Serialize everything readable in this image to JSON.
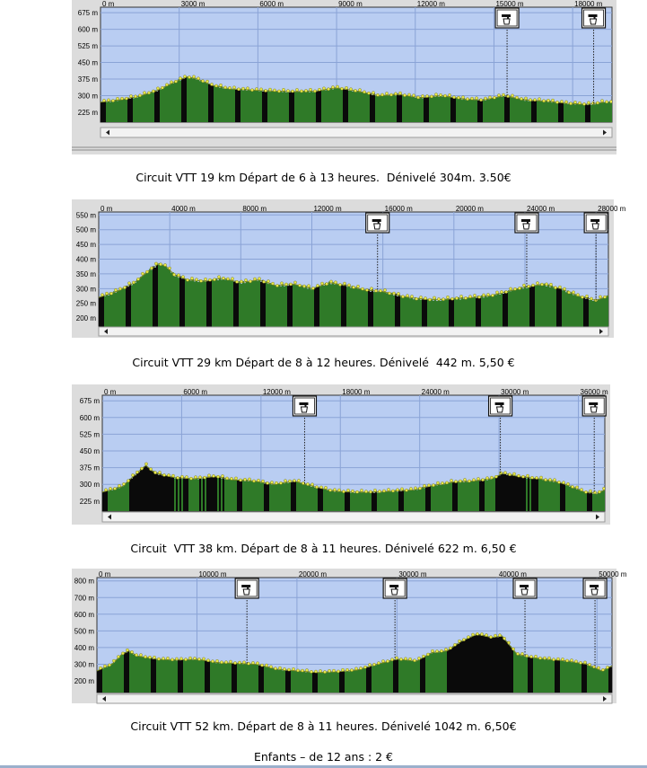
{
  "colors": {
    "plot_bg": "#b9cdf2",
    "panel_bg": "#dcdcdc",
    "grid": "#8aa3d6",
    "fill_green": "#2f7a28",
    "fill_dark": "#0a0a0a",
    "marker_yellow": "#e8e84a"
  },
  "icon": "water-tap-icon",
  "profiles": [
    {
      "id": "vtt-19",
      "caption": "Circuit VTT 19 km Départ de 6 à 13 heures.  Dénivelé 304m. 3.50€",
      "x_ticks": [
        "0 m",
        "3000 m",
        "6000 m",
        "9000 m",
        "12000 m",
        "15000 m",
        "18000 m"
      ],
      "y_ticks": [
        "675 m",
        "600 m",
        "525 m",
        "450 m",
        "375 m",
        "300 m",
        "225 m"
      ],
      "chart_data": {
        "type": "area",
        "xlabel": "",
        "ylabel": "",
        "x_unit": "m",
        "ylim": [
          180,
          700
        ],
        "xlim": [
          0,
          19500
        ],
        "x": [
          0,
          700,
          1400,
          2100,
          2800,
          3300,
          3700,
          4300,
          5000,
          5800,
          6600,
          7400,
          8200,
          9000,
          9800,
          10600,
          11400,
          12200,
          13000,
          13800,
          14600,
          15400,
          16200,
          17000,
          17800,
          18600,
          19200
        ],
        "y": [
          270,
          280,
          295,
          320,
          360,
          385,
          375,
          345,
          330,
          325,
          320,
          318,
          320,
          335,
          320,
          300,
          305,
          290,
          300,
          285,
          280,
          300,
          280,
          275,
          265,
          260,
          270
        ],
        "water_points_x": [
          15500,
          18800
        ]
      }
    },
    {
      "id": "vtt-29",
      "caption": "Circuit VTT 29 km Départ de 8 à 12 heures. Dénivelé  442 m. 5,50 €",
      "x_ticks": [
        "0 m",
        "4000 m",
        "8000 m",
        "12000 m",
        "16000 m",
        "20000 m",
        "24000 m",
        "28000 m"
      ],
      "y_ticks": [
        "550 m",
        "500 m",
        "450 m",
        "400 m",
        "350 m",
        "300 m",
        "250 m",
        "200 m"
      ],
      "chart_data": {
        "type": "area",
        "xlabel": "",
        "ylabel": "",
        "x_unit": "m",
        "ylim": [
          170,
          560
        ],
        "xlim": [
          0,
          28700
        ],
        "x": [
          0,
          1000,
          2000,
          2800,
          3400,
          3800,
          4300,
          5000,
          6000,
          7000,
          8000,
          9000,
          10000,
          11000,
          12000,
          13000,
          14000,
          15000,
          16000,
          17000,
          18000,
          19000,
          20000,
          21000,
          22000,
          23000,
          24000,
          25000,
          26000,
          27000,
          28000,
          28700
        ],
        "y": [
          270,
          290,
          320,
          360,
          385,
          375,
          345,
          330,
          325,
          335,
          320,
          330,
          310,
          315,
          300,
          320,
          310,
          295,
          290,
          275,
          265,
          262,
          265,
          270,
          275,
          290,
          305,
          315,
          300,
          275,
          260,
          275
        ],
        "water_points_x": [
          15700,
          24100,
          28000
        ]
      }
    },
    {
      "id": "vtt-38",
      "caption": "Circuit  VTT 38 km. Départ de 8 à 11 heures. Dénivelé 622 m. 6,50 €",
      "x_ticks": [
        "0 m",
        "6000 m",
        "12000 m",
        "18000 m",
        "24000 m",
        "30000 m",
        "36000 m"
      ],
      "y_ticks": [
        "675 m",
        "600 m",
        "525 m",
        "450 m",
        "375 m",
        "300 m",
        "225 m"
      ],
      "chart_data": {
        "type": "area",
        "xlabel": "",
        "ylabel": "",
        "x_unit": "m",
        "ylim": [
          180,
          700
        ],
        "xlim": [
          0,
          38000
        ],
        "x": [
          0,
          1500,
          2800,
          3300,
          4000,
          5500,
          7000,
          8500,
          10000,
          11500,
          13000,
          14500,
          16000,
          17500,
          19000,
          20500,
          22000,
          23500,
          25000,
          26500,
          28000,
          29500,
          30300,
          31500,
          33000,
          34500,
          35500,
          36500,
          37400,
          38000
        ],
        "y": [
          265,
          290,
          360,
          385,
          350,
          330,
          325,
          335,
          320,
          315,
          300,
          315,
          290,
          270,
          265,
          265,
          270,
          275,
          295,
          310,
          315,
          325,
          350,
          335,
          325,
          310,
          290,
          265,
          260,
          275
        ],
        "water_points_x": [
          15300,
          30100,
          37200
        ]
      }
    },
    {
      "id": "vtt-52",
      "caption": "Circuit VTT 52 km. Départ de 8 à 11 heures. Dénivelé 1042 m. 6,50€",
      "x_ticks": [
        "0 m",
        "10000 m",
        "20000 m",
        "30000 m",
        "40000 m",
        "50000 m"
      ],
      "y_ticks": [
        "800 m",
        "700 m",
        "600 m",
        "500 m",
        "400 m",
        "300 m",
        "200 m"
      ],
      "chart_data": {
        "type": "area",
        "xlabel": "",
        "ylabel": "",
        "x_unit": "m",
        "ylim": [
          130,
          820
        ],
        "xlim": [
          0,
          51500
        ],
        "x": [
          0,
          1500,
          2500,
          3200,
          4000,
          6000,
          8000,
          10000,
          12000,
          14000,
          16000,
          18000,
          20000,
          22000,
          24000,
          26000,
          28000,
          30000,
          32000,
          33500,
          35000,
          36500,
          38000,
          39500,
          40500,
          42000,
          43500,
          45000,
          47000,
          49000,
          50500,
          51500
        ],
        "y": [
          260,
          300,
          360,
          380,
          350,
          330,
          325,
          330,
          310,
          305,
          300,
          270,
          260,
          250,
          255,
          265,
          300,
          330,
          320,
          370,
          380,
          440,
          480,
          460,
          470,
          360,
          340,
          330,
          320,
          300,
          260,
          290
        ],
        "water_points_x": [
          15000,
          29800,
          42800,
          49800
        ]
      }
    }
  ],
  "footer": "Enfants – de 12 ans : 2 €"
}
